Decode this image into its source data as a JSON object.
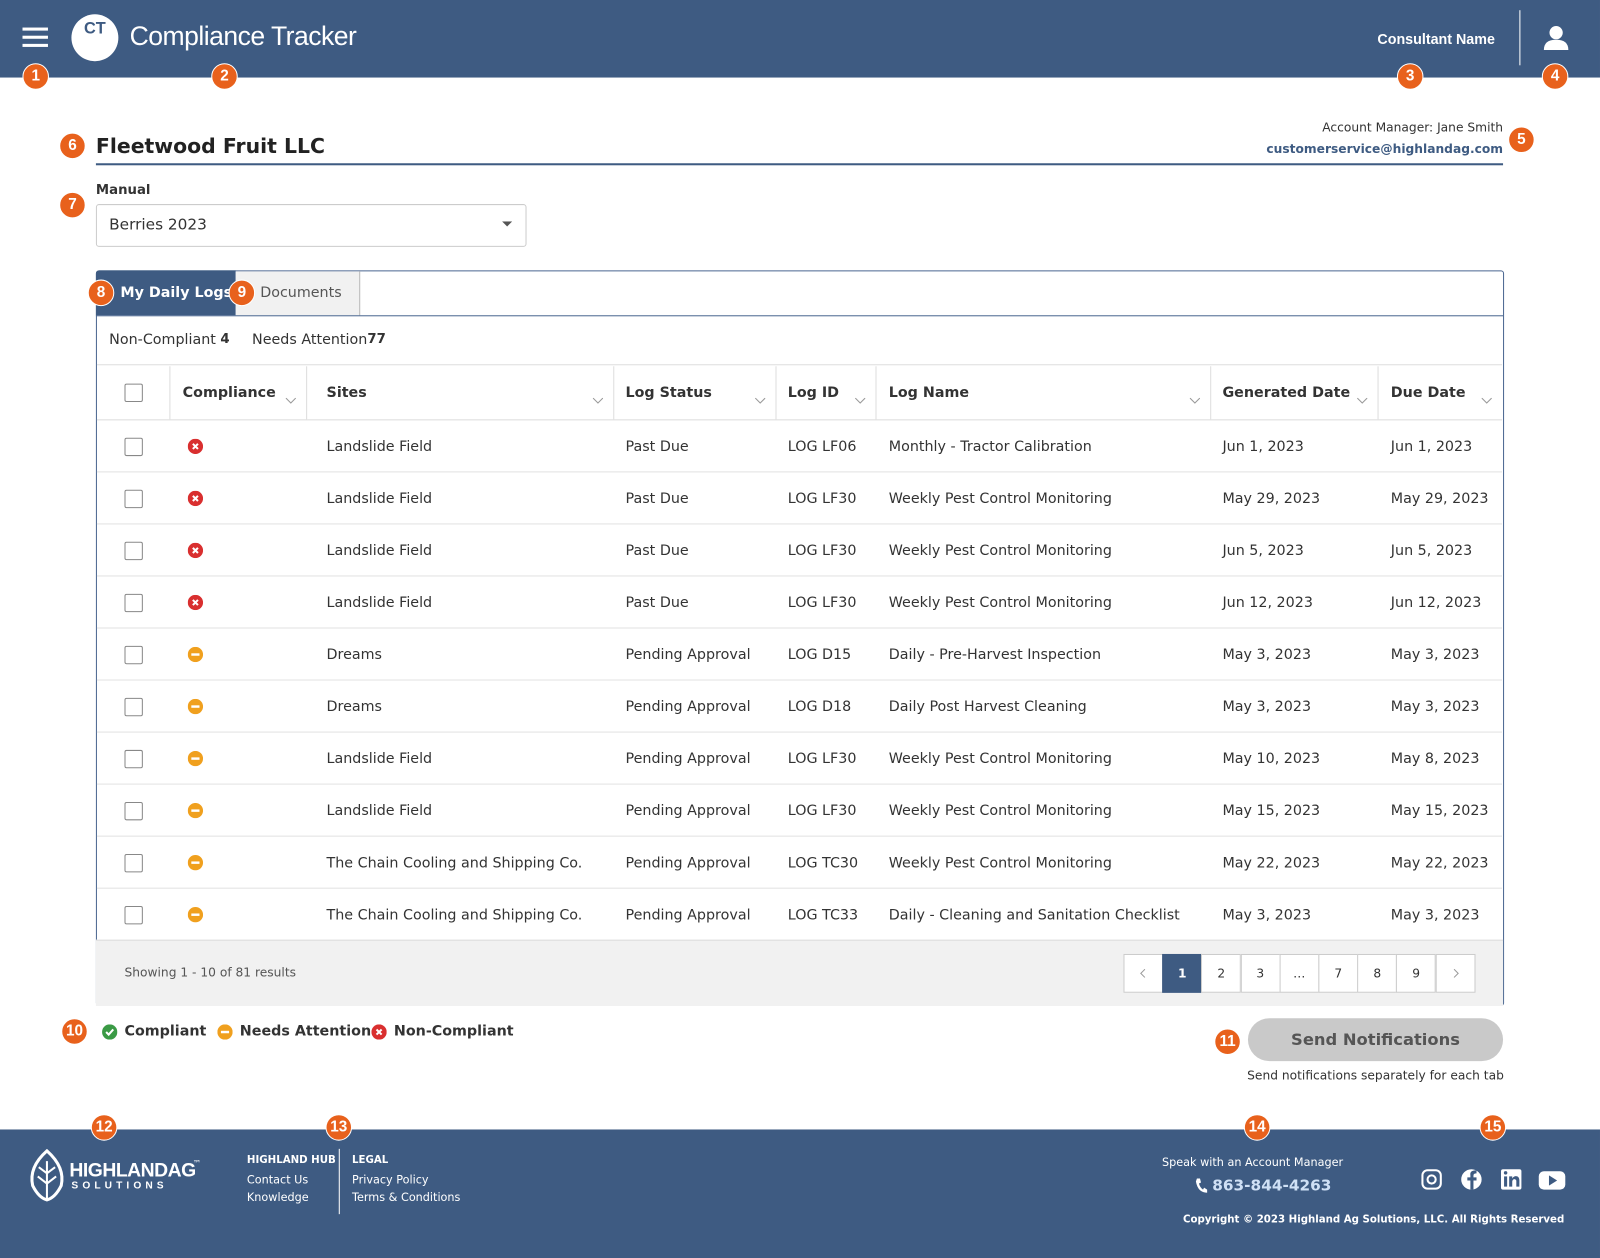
{
  "header": {
    "logo": "CT",
    "title": "Compliance Tracker",
    "user": "Consultant Name"
  },
  "callouts": [
    "1",
    "2",
    "3",
    "4",
    "5",
    "6",
    "7",
    "8",
    "9",
    "10",
    "11",
    "12",
    "13",
    "14",
    "15"
  ],
  "client": {
    "name": "Fleetwood Fruit LLC",
    "account_manager": "Account Manager: Jane Smith",
    "email": "customerservice@highlandag.com"
  },
  "manual": {
    "label": "Manual",
    "value": "Berries 2023"
  },
  "tabs": [
    "My Daily Logs",
    "Documents"
  ],
  "summary": [
    {
      "label": "Non-Compliant",
      "count": "4"
    },
    {
      "label": "Needs Attention",
      "count": "77"
    }
  ],
  "table": {
    "columns": [
      "Compliance",
      "Sites",
      "Log Status",
      "Log ID",
      "Log Name",
      "Generated Date",
      "Due Date"
    ],
    "rows": [
      {
        "compliance": "Non-Compliant",
        "cells": [
          "Landslide Field",
          "Past Due",
          "LOG LF06",
          "Monthly - Tractor Calibration",
          "Jun 1, 2023",
          "Jun 1, 2023"
        ]
      },
      {
        "compliance": "Non-Compliant",
        "cells": [
          "Landslide Field",
          "Past Due",
          "LOG LF30",
          "Weekly Pest Control Monitoring",
          "May 29, 2023",
          "May 29, 2023"
        ]
      },
      {
        "compliance": "Non-Compliant",
        "cells": [
          "Landslide Field",
          "Past Due",
          "LOG LF30",
          "Weekly Pest Control Monitoring",
          "Jun 5, 2023",
          "Jun 5, 2023"
        ]
      },
      {
        "compliance": "Non-Compliant",
        "cells": [
          "Landslide Field",
          "Past Due",
          "LOG LF30",
          "Weekly Pest Control Monitoring",
          "Jun 12, 2023",
          "Jun 12, 2023"
        ]
      },
      {
        "compliance": "Needs Attention",
        "cells": [
          "Dreams",
          "Pending Approval",
          "LOG D15",
          "Daily - Pre-Harvest Inspection",
          "May 3, 2023",
          "May 3, 2023"
        ]
      },
      {
        "compliance": "Needs Attention",
        "cells": [
          "Dreams",
          "Pending Approval",
          "LOG D18",
          "Daily Post Harvest Cleaning",
          "May 3, 2023",
          "May 3, 2023"
        ]
      },
      {
        "compliance": "Needs Attention",
        "cells": [
          "Landslide Field",
          "Pending Approval",
          "LOG LF30",
          "Weekly Pest Control Monitoring",
          "May 10, 2023",
          "May 8, 2023"
        ]
      },
      {
        "compliance": "Needs Attention",
        "cells": [
          "Landslide Field",
          "Pending Approval",
          "LOG LF30",
          "Weekly Pest Control Monitoring",
          "May 15, 2023",
          "May 15, 2023"
        ]
      },
      {
        "compliance": "Needs Attention",
        "cells": [
          "The Chain Cooling and Shipping Co.",
          "Pending Approval",
          "LOG TC30",
          "Weekly Pest Control Monitoring",
          "May 22, 2023",
          "May 22, 2023"
        ]
      },
      {
        "compliance": "Needs Attention",
        "cells": [
          "The Chain Cooling and Shipping Co.",
          "Pending Approval",
          "LOG TC33",
          "Daily - Cleaning and Sanitation Checklist",
          "May 3, 2023",
          "May 3, 2023"
        ]
      }
    ]
  },
  "pagination": {
    "showing": "Showing 1 - 10 of 81 results",
    "pages": [
      "1",
      "2",
      "3",
      "…",
      "7",
      "8",
      "9"
    ],
    "current": "1"
  },
  "legend": [
    "Compliant",
    "Needs Attention",
    "Non-Compliant"
  ],
  "action": {
    "button": "Send Notifications",
    "note": "Send notifications separately for each tab"
  },
  "footer": {
    "brand": "HIGHLANDAG",
    "brand_mark": "™",
    "brand_sub": "SOLUTIONS",
    "hub": {
      "title": "HIGHLAND HUB",
      "links": [
        "Contact Us",
        "Knowledge"
      ]
    },
    "legal": {
      "title": "LEGAL",
      "links": [
        "Privacy Policy",
        "Terms & Conditions"
      ]
    },
    "contact_label": "Speak with an Account Manager",
    "phone": "863-844-4263",
    "copyright": "Copyright © 2023 Highland Ag Solutions, LLC. All Rights Reserved"
  }
}
